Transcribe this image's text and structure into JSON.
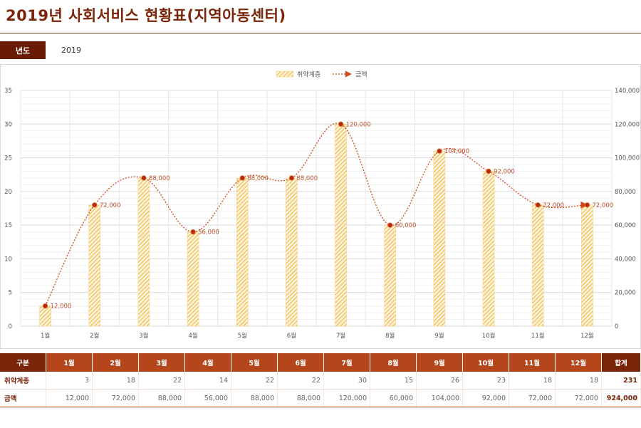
{
  "page": {
    "title": "2019년 사회서비스 현황표(지역아동센터)"
  },
  "year": {
    "label": "년도",
    "value": "2019"
  },
  "colors": {
    "bar": "#f0b840",
    "line": "#d2481b",
    "point": "#b22a0a",
    "header": "#b5461c",
    "header_dark": "#7a2408"
  },
  "chart_data": {
    "type": "bar",
    "categories": [
      "1월",
      "2월",
      "3월",
      "4월",
      "5월",
      "6월",
      "7월",
      "8월",
      "9월",
      "10월",
      "11월",
      "12월"
    ],
    "series": [
      {
        "name": "취약계층",
        "type": "bar",
        "axis": "left",
        "values": [
          3,
          18,
          22,
          14,
          22,
          22,
          30,
          15,
          26,
          23,
          18,
          18
        ]
      },
      {
        "name": "금액",
        "type": "line",
        "axis": "right",
        "values": [
          12000,
          72000,
          88000,
          56000,
          88000,
          88000,
          120000,
          60000,
          104000,
          92000,
          72000,
          72000
        ],
        "labels": [
          "12,000",
          "72,000",
          "88,000",
          "56,000",
          "88,000",
          "88,000",
          "120,000",
          "60,000",
          "104,000",
          "92,000",
          "72,000",
          "72,000"
        ]
      }
    ],
    "y_left": {
      "lim": [
        0,
        35
      ],
      "ticks": [
        "0",
        "5",
        "10",
        "15",
        "20",
        "25",
        "30",
        "35"
      ]
    },
    "y_right": {
      "lim": [
        0,
        140000
      ],
      "ticks": [
        "0",
        "20,000",
        "40,000",
        "60,000",
        "80,000",
        "100,000",
        "120,000",
        "140,000"
      ]
    },
    "legend": {
      "position": "top",
      "items": [
        "취약계층",
        "금액"
      ]
    }
  },
  "table": {
    "corner": "구분",
    "total_header": "합계",
    "months": [
      "1월",
      "2월",
      "3월",
      "4월",
      "5월",
      "6월",
      "7월",
      "8월",
      "9월",
      "10월",
      "11월",
      "12월"
    ],
    "rows": [
      {
        "label": "취약계층",
        "values": [
          "3",
          "18",
          "22",
          "14",
          "22",
          "22",
          "30",
          "15",
          "26",
          "23",
          "18",
          "18"
        ],
        "total": "231"
      },
      {
        "label": "금액",
        "values": [
          "12,000",
          "72,000",
          "88,000",
          "56,000",
          "88,000",
          "88,000",
          "120,000",
          "60,000",
          "104,000",
          "92,000",
          "72,000",
          "72,000"
        ],
        "total": "924,000"
      }
    ]
  }
}
